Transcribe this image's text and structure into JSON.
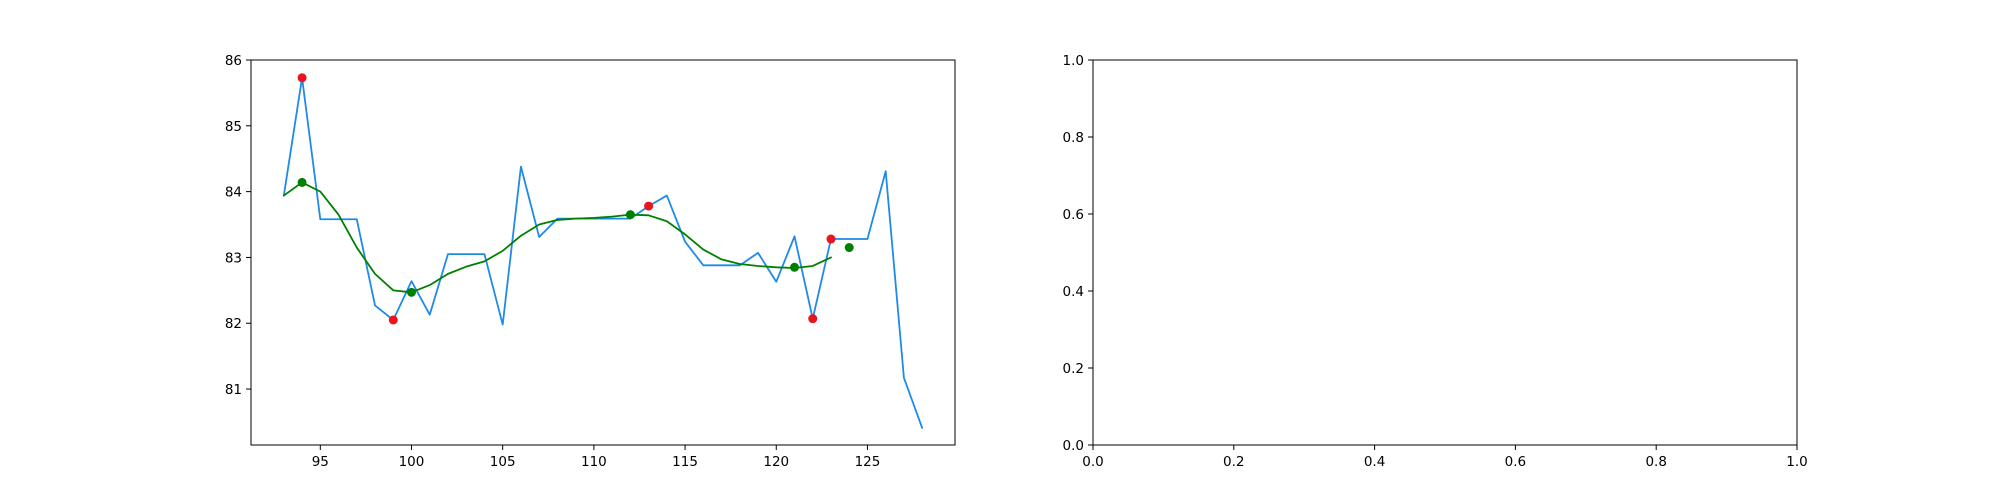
{
  "chart_data": [
    {
      "type": "line",
      "title": "",
      "xlabel": "",
      "ylabel": "",
      "xlim": [
        91.2,
        129.8
      ],
      "ylim": [
        80.15,
        86.0
      ],
      "x_ticks": [
        95,
        100,
        105,
        110,
        115,
        120,
        125
      ],
      "y_ticks": [
        81,
        82,
        83,
        84,
        85,
        86
      ],
      "grid": false,
      "colors": {
        "raw": "#1f8ae8",
        "smooth": "#008000",
        "red_points": "#e8141e",
        "green_points": "#008000"
      },
      "series": [
        {
          "kind": "line",
          "color": "#1f8ae8",
          "x": [
            93,
            94,
            95,
            96,
            97,
            98,
            99,
            100,
            101,
            102,
            103,
            104,
            105,
            106,
            107,
            108,
            109,
            110,
            111,
            112,
            113,
            114,
            115,
            116,
            117,
            118,
            119,
            120,
            121,
            122,
            123,
            124,
            125,
            126,
            127,
            128
          ],
          "y": [
            83.94,
            85.73,
            83.58,
            83.58,
            83.58,
            82.27,
            82.05,
            82.64,
            82.13,
            83.05,
            83.05,
            83.05,
            81.98,
            84.38,
            83.31,
            83.59,
            83.59,
            83.59,
            83.59,
            83.59,
            83.78,
            83.94,
            83.24,
            82.88,
            82.88,
            82.88,
            83.07,
            82.63,
            83.32,
            82.07,
            83.28,
            83.28,
            83.28,
            84.31,
            81.17,
            80.41
          ]
        },
        {
          "kind": "line",
          "color": "#008000",
          "x": [
            93,
            94,
            95,
            96,
            97,
            98,
            99,
            100,
            101,
            102,
            103,
            104,
            105,
            106,
            107,
            108,
            109,
            110,
            111,
            112,
            113,
            114,
            115,
            116,
            117,
            118,
            119,
            120,
            121,
            122,
            123
          ],
          "y": [
            83.94,
            84.14,
            84.0,
            83.65,
            83.15,
            82.75,
            82.5,
            82.47,
            82.58,
            82.75,
            82.86,
            82.94,
            83.1,
            83.33,
            83.5,
            83.57,
            83.59,
            83.6,
            83.62,
            83.65,
            83.64,
            83.55,
            83.35,
            83.12,
            82.97,
            82.9,
            82.87,
            82.85,
            82.84,
            82.87,
            83.0
          ]
        },
        {
          "kind": "scatter",
          "color": "#e8141e",
          "x": [
            94,
            99,
            113,
            122,
            123
          ],
          "y": [
            85.73,
            82.05,
            83.78,
            82.07,
            83.28
          ]
        },
        {
          "kind": "scatter",
          "color": "#008000",
          "x": [
            94,
            100,
            112,
            121,
            124
          ],
          "y": [
            84.14,
            82.47,
            83.65,
            82.85,
            83.15
          ]
        }
      ]
    },
    {
      "type": "line",
      "title": "",
      "xlabel": "",
      "ylabel": "",
      "xlim": [
        0,
        1
      ],
      "ylim": [
        0,
        1
      ],
      "x_ticks": [
        "0.0",
        "0.2",
        "0.4",
        "0.6",
        "0.8",
        "1.0"
      ],
      "y_ticks": [
        "0.0",
        "0.2",
        "0.4",
        "0.6",
        "0.8",
        "1.0"
      ],
      "grid": false,
      "series": []
    }
  ]
}
